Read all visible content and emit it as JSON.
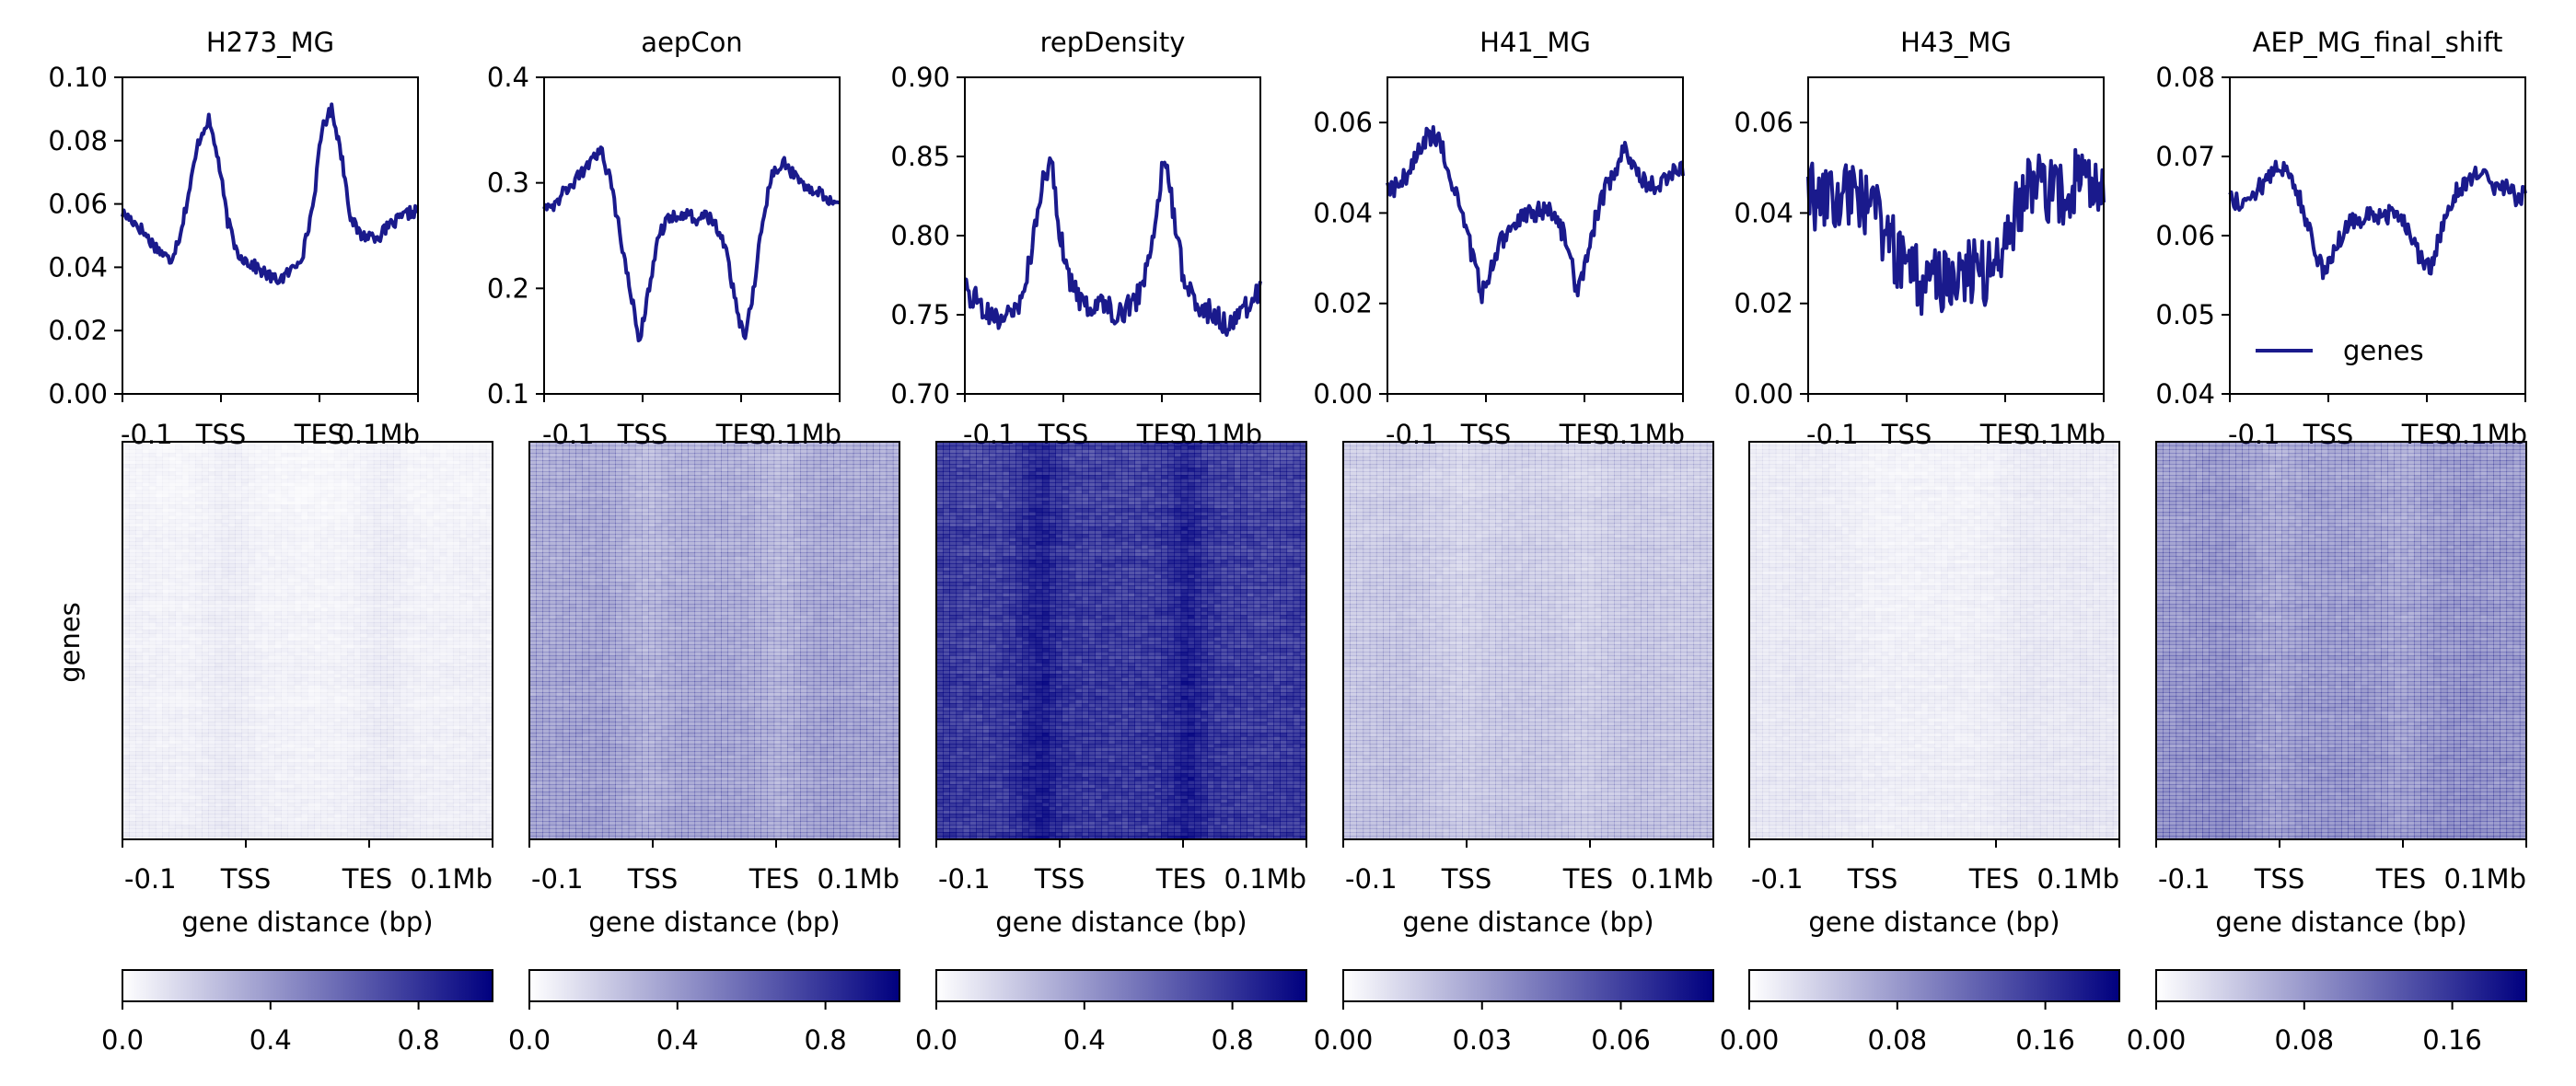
{
  "figure": {
    "heatmap_ylabel": "genes",
    "xlabel": "gene distance (bp)",
    "x_ticks_profile": [
      "-0.1",
      "TSS",
      "TES",
      "0.1Mb"
    ],
    "x_ticks_heatmap": [
      "-0.1",
      "TSS",
      "TES",
      "0.1Mb"
    ],
    "line_color": "#1a1a8c",
    "colormap": [
      "#ffffff",
      "#00007f"
    ]
  },
  "chart_data": [
    {
      "type": "line",
      "title": "H273_MG",
      "xlabel": "gene distance (bp)",
      "x_ticks": [
        "-0.1",
        "TSS",
        "TES",
        "0.1Mb"
      ],
      "ylim": [
        0.0,
        0.1
      ],
      "yticks": [
        "0.00",
        "0.02",
        "0.04",
        "0.06",
        "0.08",
        "0.10"
      ],
      "series": [
        {
          "values": [
            0.057,
            0.055,
            0.052,
            0.048,
            0.045,
            0.042,
            0.05,
            0.064,
            0.08,
            0.087,
            0.075,
            0.055,
            0.045,
            0.042,
            0.04,
            0.038,
            0.036,
            0.037,
            0.04,
            0.045,
            0.06,
            0.085,
            0.09,
            0.075,
            0.055,
            0.05,
            0.05,
            0.05,
            0.053,
            0.055,
            0.057,
            0.058
          ],
          "noise": 0.002
        }
      ],
      "heatmap": {
        "colorbar_ticks": [
          "0.0",
          "0.4",
          "0.8"
        ],
        "colorbar_range": [
          0,
          1
        ],
        "mean_intensity": 0.04
      }
    },
    {
      "type": "line",
      "title": "aepCon",
      "xlabel": "gene distance (bp)",
      "x_ticks": [
        "-0.1",
        "TSS",
        "TES",
        "0.1Mb"
      ],
      "ylim": [
        0.1,
        0.4
      ],
      "yticks": [
        "0.1",
        "0.2",
        "0.3",
        "0.4"
      ],
      "series": [
        {
          "values": [
            0.28,
            0.28,
            0.29,
            0.3,
            0.31,
            0.32,
            0.33,
            0.3,
            0.25,
            0.2,
            0.15,
            0.2,
            0.25,
            0.265,
            0.27,
            0.27,
            0.265,
            0.27,
            0.26,
            0.24,
            0.19,
            0.15,
            0.2,
            0.27,
            0.31,
            0.32,
            0.31,
            0.3,
            0.295,
            0.29,
            0.285,
            0.28
          ],
          "noise": 0.006
        }
      ],
      "heatmap": {
        "colorbar_ticks": [
          "0.0",
          "0.4",
          "0.8"
        ],
        "colorbar_range": [
          0,
          1
        ],
        "mean_intensity": 0.26
      }
    },
    {
      "type": "line",
      "title": "repDensity",
      "xlabel": "gene distance (bp)",
      "x_ticks": [
        "-0.1",
        "TSS",
        "TES",
        "0.1Mb"
      ],
      "ylim": [
        0.7,
        0.9
      ],
      "yticks": [
        "0.70",
        "0.75",
        "0.80",
        "0.85",
        "0.90"
      ],
      "series": [
        {
          "values": [
            0.765,
            0.76,
            0.755,
            0.75,
            0.745,
            0.75,
            0.76,
            0.79,
            0.83,
            0.85,
            0.8,
            0.77,
            0.76,
            0.755,
            0.76,
            0.755,
            0.75,
            0.755,
            0.76,
            0.775,
            0.81,
            0.855,
            0.81,
            0.77,
            0.76,
            0.755,
            0.75,
            0.745,
            0.745,
            0.75,
            0.76,
            0.765
          ],
          "noise": 0.008
        }
      ],
      "heatmap": {
        "colorbar_ticks": [
          "0.0",
          "0.4",
          "0.8"
        ],
        "colorbar_range": [
          0,
          1
        ],
        "mean_intensity": 0.76
      }
    },
    {
      "type": "line",
      "title": "H41_MG",
      "xlabel": "gene distance (bp)",
      "x_ticks": [
        "-0.1",
        "TSS",
        "TES",
        "0.1Mb"
      ],
      "ylim": [
        0.0,
        0.07
      ],
      "yticks": [
        "0.00",
        "0.02",
        "0.04",
        "0.06"
      ],
      "series": [
        {
          "values": [
            0.045,
            0.046,
            0.048,
            0.052,
            0.056,
            0.058,
            0.052,
            0.045,
            0.038,
            0.03,
            0.022,
            0.028,
            0.034,
            0.037,
            0.039,
            0.04,
            0.04,
            0.041,
            0.038,
            0.032,
            0.022,
            0.03,
            0.04,
            0.046,
            0.05,
            0.054,
            0.05,
            0.047,
            0.046,
            0.047,
            0.049,
            0.05
          ],
          "noise": 0.0025
        }
      ],
      "heatmap": {
        "colorbar_ticks": [
          "0.00",
          "0.03",
          "0.06"
        ],
        "colorbar_range": [
          0,
          0.08
        ],
        "mean_intensity": 0.15
      }
    },
    {
      "type": "line",
      "title": "H43_MG",
      "xlabel": "gene distance (bp)",
      "x_ticks": [
        "-0.1",
        "TSS",
        "TES",
        "0.1Mb"
      ],
      "ylim": [
        0.0,
        0.07
      ],
      "yticks": [
        "0.00",
        "0.02",
        "0.04",
        "0.06"
      ],
      "series": [
        {
          "values": [
            0.045,
            0.043,
            0.042,
            0.043,
            0.045,
            0.044,
            0.042,
            0.04,
            0.036,
            0.032,
            0.028,
            0.026,
            0.025,
            0.025,
            0.025,
            0.026,
            0.027,
            0.027,
            0.026,
            0.028,
            0.03,
            0.035,
            0.042,
            0.046,
            0.046,
            0.045,
            0.044,
            0.045,
            0.047,
            0.046,
            0.044,
            0.044
          ],
          "noise": 0.0075
        }
      ],
      "heatmap": {
        "colorbar_ticks": [
          "0.00",
          "0.08",
          "0.16"
        ],
        "colorbar_range": [
          0,
          0.2
        ],
        "mean_intensity": 0.05
      }
    },
    {
      "type": "line",
      "title": "AEP_MG_final_shift",
      "xlabel": "gene distance (bp)",
      "x_ticks": [
        "-0.1",
        "TSS",
        "TES",
        "0.1Mb"
      ],
      "ylim": [
        0.04,
        0.08
      ],
      "yticks": [
        "0.04",
        "0.05",
        "0.06",
        "0.07",
        "0.08"
      ],
      "legend": {
        "label": "genes",
        "position": "lower-right"
      },
      "series": [
        {
          "name": "genes",
          "values": [
            0.065,
            0.064,
            0.065,
            0.066,
            0.067,
            0.069,
            0.068,
            0.066,
            0.062,
            0.058,
            0.055,
            0.058,
            0.061,
            0.062,
            0.062,
            0.063,
            0.062,
            0.063,
            0.062,
            0.06,
            0.057,
            0.056,
            0.06,
            0.064,
            0.066,
            0.067,
            0.068,
            0.067,
            0.066,
            0.066,
            0.065,
            0.065
          ],
          "noise": 0.0012
        }
      ],
      "heatmap": {
        "colorbar_ticks": [
          "0.00",
          "0.08",
          "0.16"
        ],
        "colorbar_range": [
          0,
          0.2
        ],
        "mean_intensity": 0.32
      }
    }
  ]
}
